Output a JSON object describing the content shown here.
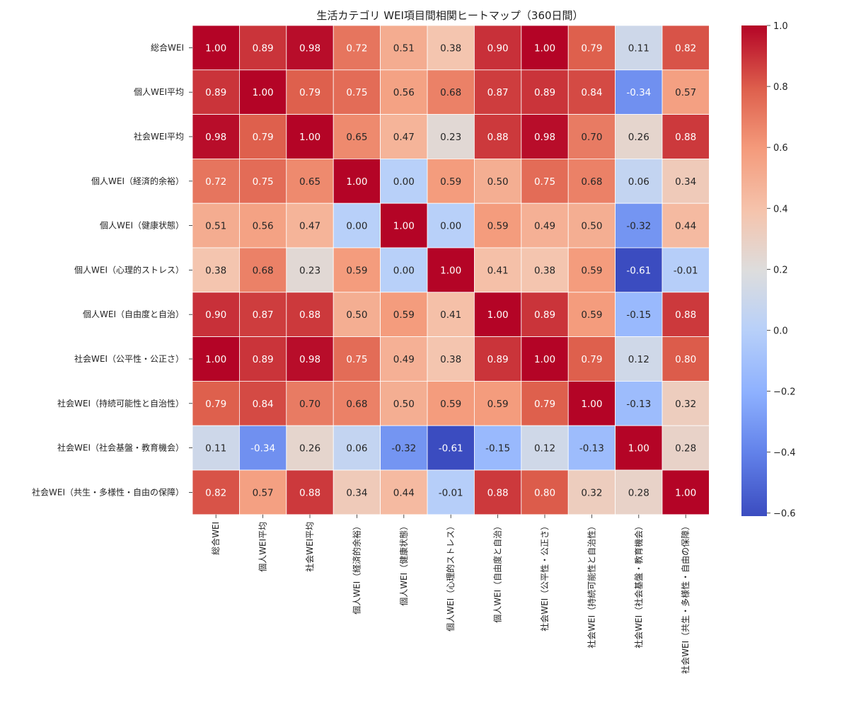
{
  "chart_data": {
    "type": "heatmap",
    "title": "生活カテゴリ WEI項目間相関ヒートマップ（360日間）",
    "xlabel": "",
    "ylabel": "",
    "labels": [
      "総合WEI",
      "個人WEI平均",
      "社会WEI平均",
      "個人WEI（経済的余裕）",
      "個人WEI（健康状態）",
      "個人WEI（心理的ストレス）",
      "個人WEI（自由度と自治）",
      "社会WEI（公平性・公正さ）",
      "社会WEI（持続可能性と自治性）",
      "社会WEI（社会基盤・教育機会）",
      "社会WEI（共生・多様性・自由の保障）"
    ],
    "values": [
      [
        1.0,
        0.89,
        0.98,
        0.72,
        0.51,
        0.38,
        0.9,
        1.0,
        0.79,
        0.11,
        0.82
      ],
      [
        0.89,
        1.0,
        0.79,
        0.75,
        0.56,
        0.68,
        0.87,
        0.89,
        0.84,
        -0.34,
        0.57
      ],
      [
        0.98,
        0.79,
        1.0,
        0.65,
        0.47,
        0.23,
        0.88,
        0.98,
        0.7,
        0.26,
        0.88
      ],
      [
        0.72,
        0.75,
        0.65,
        1.0,
        0.0,
        0.59,
        0.5,
        0.75,
        0.68,
        0.06,
        0.34
      ],
      [
        0.51,
        0.56,
        0.47,
        0.0,
        1.0,
        0.0,
        0.59,
        0.49,
        0.5,
        -0.32,
        0.44
      ],
      [
        0.38,
        0.68,
        0.23,
        0.59,
        0.0,
        1.0,
        0.41,
        0.38,
        0.59,
        -0.61,
        -0.01
      ],
      [
        0.9,
        0.87,
        0.88,
        0.5,
        0.59,
        0.41,
        1.0,
        0.89,
        0.59,
        -0.15,
        0.88
      ],
      [
        1.0,
        0.89,
        0.98,
        0.75,
        0.49,
        0.38,
        0.89,
        1.0,
        0.79,
        0.12,
        0.8
      ],
      [
        0.79,
        0.84,
        0.7,
        0.68,
        0.5,
        0.59,
        0.59,
        0.79,
        1.0,
        -0.13,
        0.32
      ],
      [
        0.11,
        -0.34,
        0.26,
        0.06,
        -0.32,
        -0.61,
        -0.15,
        0.12,
        -0.13,
        1.0,
        0.28
      ],
      [
        0.82,
        0.57,
        0.88,
        0.34,
        0.44,
        -0.01,
        0.88,
        0.8,
        0.32,
        0.28,
        1.0
      ]
    ],
    "value_format": "2 decimals",
    "colormap": "coolwarm",
    "colorbar": {
      "range": [
        -0.61,
        1.0
      ],
      "ticks": [
        -0.6,
        -0.4,
        -0.2,
        0.0,
        0.2,
        0.4,
        0.6,
        0.8,
        1.0
      ],
      "tick_labels": [
        "−0.6",
        "−0.4",
        "−0.2",
        "0.0",
        "0.2",
        "0.4",
        "0.6",
        "0.8",
        "1.0"
      ],
      "placement": "right"
    },
    "grid": false
  }
}
